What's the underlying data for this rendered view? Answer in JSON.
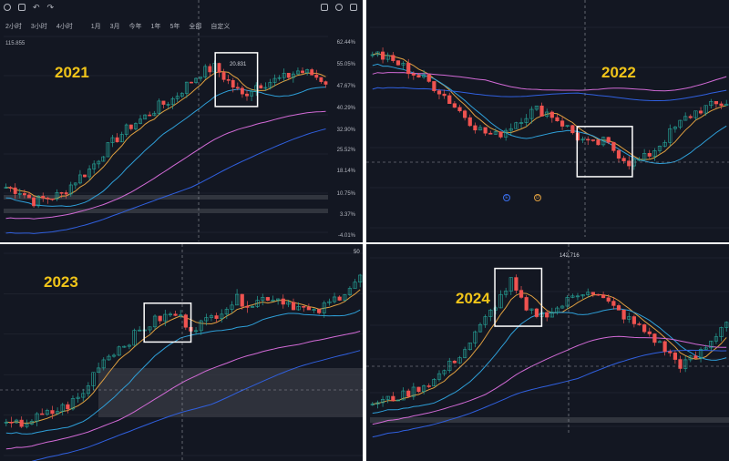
{
  "toolbar": {
    "intervals": [
      "2小时",
      "3小时",
      "4小时",
      "1月",
      "3月",
      "今年",
      "1年",
      "5年",
      "全部",
      "自定义"
    ],
    "price_label": "115.855",
    "icons": [
      "eye-icon",
      "trash-icon",
      "undo-icon",
      "redo-icon",
      "camera-icon",
      "gear-icon",
      "fullscreen-icon"
    ]
  },
  "panels": [
    {
      "year_label": "2021",
      "peak_label": "20.831"
    },
    {
      "year_label": "2022"
    },
    {
      "year_label": "2023",
      "peak_label": "50"
    },
    {
      "year_label": "2024",
      "peak_label": "142.716"
    }
  ],
  "markers": {
    "e_label": "E",
    "d_label": "D"
  },
  "chart_data": [
    {
      "type": "candlestick",
      "title": "2021",
      "y_tick_labels": [
        "62.44%",
        "55.05%",
        "47.67%",
        "40.29%",
        "32.90%",
        "25.52%",
        "18.14%",
        "10.75%",
        "3.37%",
        "-4.01%"
      ],
      "peak_label": "20.831",
      "trend": [
        0.2,
        0.18,
        0.12,
        0.14,
        0.16,
        0.24,
        0.3,
        0.4,
        0.48,
        0.55,
        0.6,
        0.66,
        0.7,
        0.78,
        0.85,
        0.88,
        0.8,
        0.72,
        0.78,
        0.8,
        0.82,
        0.86,
        0.84,
        0.8
      ],
      "highlight_index": [
        15,
        18
      ],
      "series": [
        {
          "type": "ma-fast",
          "color": "#e0a040"
        },
        {
          "type": "ma-mid",
          "color": "#2e9fd8"
        },
        {
          "type": "ma-slow",
          "color": "#d26ad6"
        },
        {
          "type": "ma-long",
          "color": "#3060e0"
        }
      ]
    },
    {
      "type": "candlestick",
      "title": "2022",
      "trend": [
        0.92,
        0.88,
        0.85,
        0.8,
        0.76,
        0.7,
        0.62,
        0.55,
        0.48,
        0.45,
        0.5,
        0.56,
        0.6,
        0.58,
        0.52,
        0.45,
        0.4,
        0.42,
        0.36,
        0.3,
        0.33,
        0.4,
        0.48,
        0.55,
        0.6,
        0.62,
        0.64
      ],
      "highlight_index": [
        15,
        19
      ],
      "series": [
        {
          "type": "ma-fast",
          "color": "#e0a040"
        },
        {
          "type": "ma-mid",
          "color": "#2e9fd8"
        },
        {
          "type": "ma-slow",
          "color": "#d26ad6"
        },
        {
          "type": "ma-long",
          "color": "#3060e0"
        }
      ]
    },
    {
      "type": "candlestick",
      "title": "2023",
      "peak_label": "50",
      "trend": [
        0.1,
        0.12,
        0.15,
        0.18,
        0.22,
        0.28,
        0.45,
        0.52,
        0.58,
        0.65,
        0.7,
        0.72,
        0.65,
        0.68,
        0.75,
        0.8,
        0.78,
        0.82,
        0.8,
        0.76,
        0.72,
        0.78,
        0.85,
        0.92
      ],
      "highlight_index": [
        9,
        12
      ],
      "series": [
        {
          "type": "ma-fast",
          "color": "#e0a040"
        },
        {
          "type": "ma-mid",
          "color": "#2e9fd8"
        },
        {
          "type": "ma-slow",
          "color": "#d26ad6"
        },
        {
          "type": "ma-long",
          "color": "#3060e0"
        }
      ]
    },
    {
      "type": "candlestick",
      "title": "2024",
      "peak_label": "142.716",
      "trend": [
        0.1,
        0.12,
        0.15,
        0.2,
        0.25,
        0.35,
        0.45,
        0.6,
        0.75,
        0.9,
        0.7,
        0.68,
        0.72,
        0.8,
        0.85,
        0.78,
        0.7,
        0.62,
        0.55,
        0.45,
        0.35,
        0.4,
        0.5,
        0.65
      ],
      "highlight_index": [
        8,
        11
      ],
      "series": [
        {
          "type": "ma-fast",
          "color": "#e0a040"
        },
        {
          "type": "ma-mid",
          "color": "#2e9fd8"
        },
        {
          "type": "ma-slow",
          "color": "#d26ad6"
        },
        {
          "type": "ma-long",
          "color": "#3060e0"
        }
      ]
    }
  ],
  "colors": {
    "bg": "#131722",
    "up": "#26a69a",
    "down": "#ef5350",
    "grid": "#2a2e39",
    "highlight": "#ffffff",
    "year": "#f0c419"
  }
}
